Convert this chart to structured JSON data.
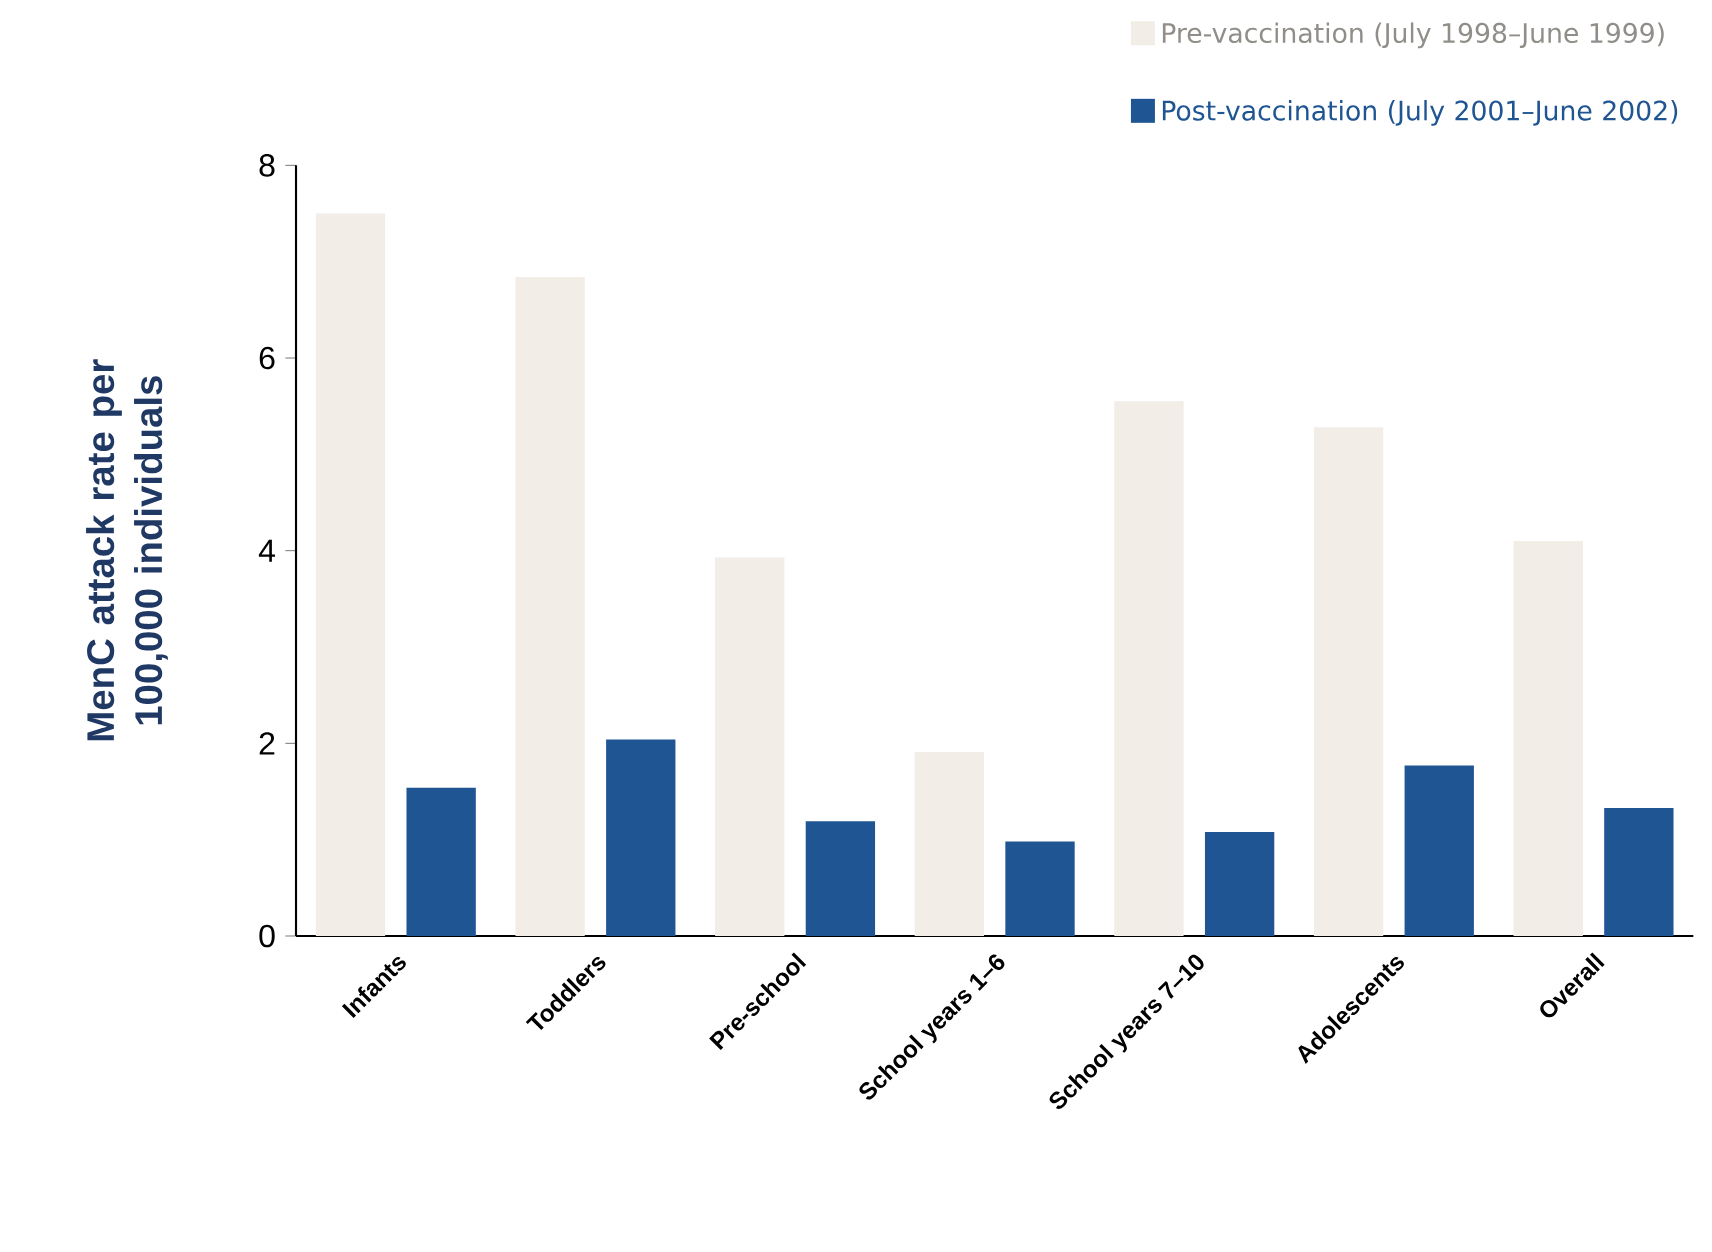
{
  "chart_data": {
    "type": "bar",
    "ylabel": "MenC attack rate per 100,000 individuals",
    "categories": [
      "Infants",
      "Toddlers",
      "Pre-school",
      "School years 1–6",
      "School years 7–10",
      "Adolescents",
      "Overall"
    ],
    "series": [
      {
        "name": "Pre-vaccination (July 1998–June 1999)",
        "color": "#f2ede6",
        "values": [
          7.5,
          6.84,
          3.93,
          1.91,
          5.55,
          5.28,
          4.1
        ]
      },
      {
        "name": "Post-vaccination (July 2001–June 2002)",
        "color": "#1f5592",
        "values": [
          1.54,
          2.04,
          1.19,
          0.98,
          1.08,
          1.77,
          1.33
        ]
      }
    ],
    "ylim": [
      0,
      8
    ],
    "yticks": [
      0,
      2,
      4,
      6,
      8
    ],
    "grid": false,
    "legend": "top right"
  }
}
